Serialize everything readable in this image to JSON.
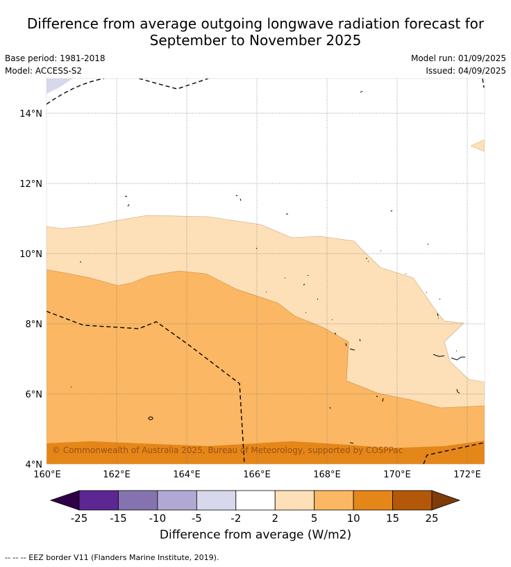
{
  "header": {
    "title_line1": "Difference from average outgoing longwave radiation forecast for",
    "title_line2": "September to November 2025",
    "base_period": "Base period: 1981-2018",
    "model": "Model: ACCESS-S2",
    "model_run": "Model run: 01/09/2025",
    "issued": "Issued: 04/09/2025"
  },
  "map": {
    "copyright": "© Commonwealth of Australia 2025, Bureau of Meteorology, supported by COSPPac",
    "lat_labels": [
      "14°N",
      "12°N",
      "10°N",
      "8°N",
      "6°N",
      "4°N"
    ],
    "lon_labels": [
      "160°E",
      "162°E",
      "164°E",
      "166°E",
      "168°E",
      "170°E",
      "172°E"
    ],
    "fill_colors": {
      "light_purple": "#d8d8ec",
      "light_orange": "#fde0b8",
      "orange": "#fbb763",
      "dark_orange": "#e58619"
    }
  },
  "colorbar": {
    "title": "Difference from average (W/m2)",
    "ticks": [
      "-25",
      "-15",
      "-10",
      "-5",
      "-2",
      "2",
      "5",
      "10",
      "15",
      "25"
    ],
    "colors": [
      "#2f0048",
      "#5c2790",
      "#8573b0",
      "#b1a9d3",
      "#d8d8ec",
      "#ffffff",
      "#fde0b8",
      "#fbb763",
      "#e58619",
      "#b35809",
      "#7f3b08"
    ]
  },
  "footnote": "-- -- -- EEZ border V11 (Flanders Marine Institute, 2019)."
}
